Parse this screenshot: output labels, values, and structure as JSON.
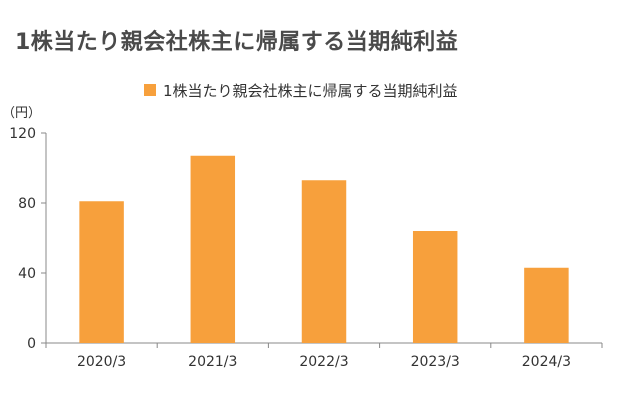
{
  "page": {
    "title": "1株当たり親会社株主に帰属する当期純利益"
  },
  "chart_data": {
    "type": "bar",
    "title": "",
    "unit_label": "（円）",
    "categories": [
      "2020/3",
      "2021/3",
      "2022/3",
      "2023/3",
      "2024/3"
    ],
    "series": [
      {
        "name": "1株当たり親会社株主に帰属する当期純利益",
        "values": [
          81,
          107,
          93,
          64,
          43
        ],
        "color": "#f7a03c"
      }
    ],
    "xlabel": "",
    "ylabel": "",
    "ylim": [
      0,
      120
    ],
    "yticks": [
      0,
      40,
      80,
      120
    ],
    "grid": false,
    "legend": "top-center"
  }
}
